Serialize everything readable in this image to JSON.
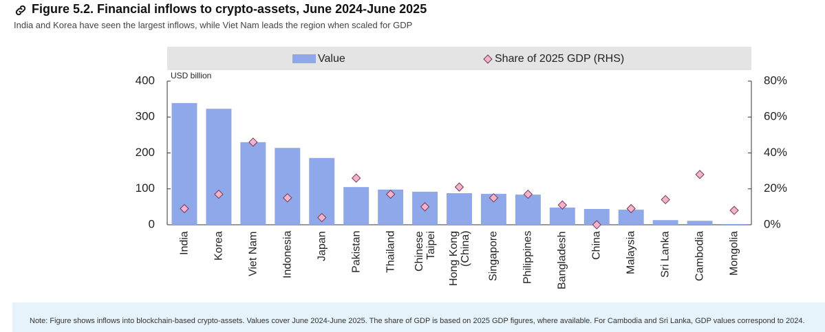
{
  "header": {
    "title": "Figure 5.2. Financial inflows to crypto-assets, June 2024-June 2025",
    "subtitle": "India and Korea have seen the largest inflows, while Viet Nam leads the region when scaled for GDP"
  },
  "chart_data": {
    "type": "bar",
    "y_label": "USD billion",
    "categories": [
      "India",
      "Korea",
      "Viet Nam",
      "Indonesia",
      "Japan",
      "Pakistan",
      "Thailand",
      "Chinese\nTaipei",
      "Hong Kong\n(China)",
      "Singapore",
      "Philippines",
      "Bangladesh",
      "China",
      "Malaysia",
      "Sri Lanka",
      "Cambodia",
      "Mongolia"
    ],
    "series": [
      {
        "name": "Value",
        "type": "bar",
        "color": "#8fa8ea",
        "values": [
          339,
          323,
          230,
          214,
          186,
          105,
          98,
          92,
          88,
          86,
          84,
          48,
          44,
          42,
          13,
          11,
          2
        ]
      },
      {
        "name": "Share of 2025 GDP (RHS)",
        "type": "scatter",
        "axis": "y2",
        "color": "#f2b3cc",
        "values": [
          9,
          17,
          46,
          15,
          4,
          26,
          17,
          10,
          21,
          15,
          17,
          11,
          0,
          9,
          14,
          28,
          8
        ]
      }
    ],
    "ylim": [
      0,
      400
    ],
    "yticks": [
      0,
      100,
      200,
      300,
      400
    ],
    "y2lim": [
      0,
      80
    ],
    "y2ticks": [
      {
        "value": 0,
        "label": "0%"
      },
      {
        "value": 20,
        "label": "20%"
      },
      {
        "value": 40,
        "label": "40%"
      },
      {
        "value": 60,
        "label": "60%"
      },
      {
        "value": 80,
        "label": "80%"
      }
    ]
  },
  "note": "Note: Figure shows inflows into blockchain-based crypto-assets. Values cover June 2024-June 2025. The share of GDP is based on 2025 GDP figures, where available. For Cambodia and Sri Lanka, GDP values correspond to 2024."
}
